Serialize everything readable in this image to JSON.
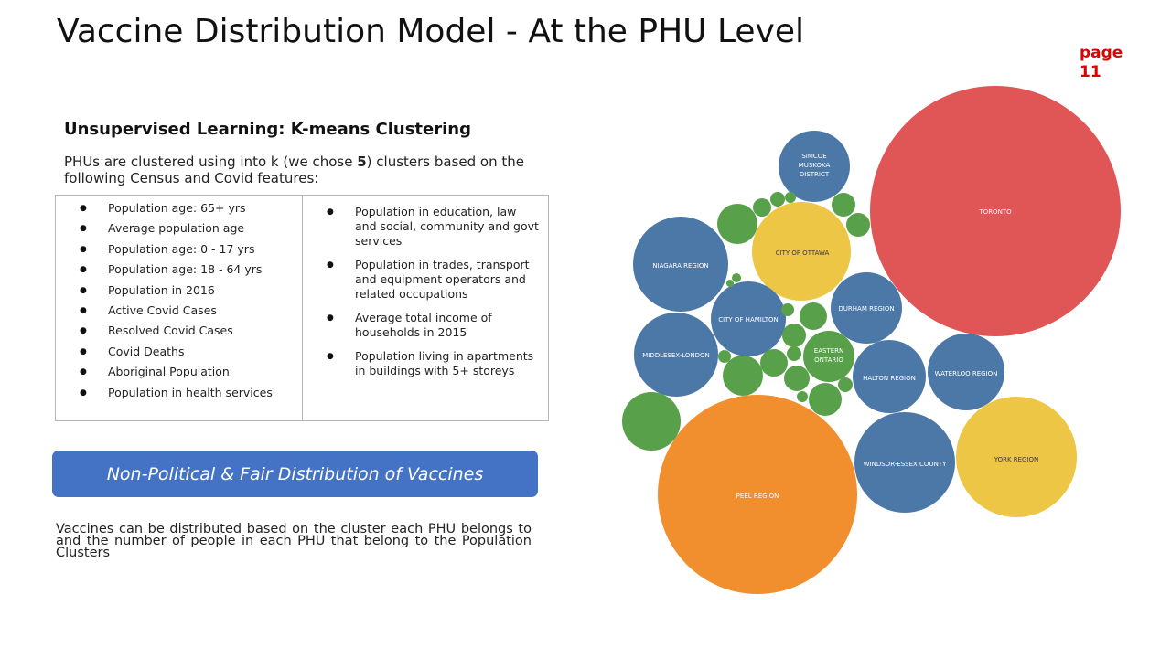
{
  "title": "Vaccine Distribution Model - At the PHU Level",
  "page_label": "page",
  "page_number": "11",
  "subheading": "Unsupervised Learning: K-means Clustering",
  "intro": {
    "before": "PHUs are clustered using into k (we chose ",
    "k": "5",
    "after": ") clusters based on the following Census and Covid features:"
  },
  "features_left": [
    "Population age: 65+ yrs",
    "Average population age",
    "Population age: 0 - 17 yrs",
    "Population age: 18 - 64 yrs",
    "Population in 2016",
    "Active Covid Cases",
    "Resolved Covid Cases",
    "Covid Deaths",
    "Aboriginal Population",
    "Population in health services"
  ],
  "features_right": [
    "Population in education, law and social, community and govt services",
    "Population in trades, transport and equipment operators and related occupations",
    "Average total income of households in 2015",
    "Population living in apartments in buildings with 5+ storeys"
  ],
  "banner": "Non-Political & Fair Distribution of Vaccines",
  "conclusion": "Vaccines can be distributed based on the cluster each PHU belongs to and the number of people in each PHU that belong to the Population Clusters",
  "colors": {
    "red": "#e05657",
    "orange": "#f18e2e",
    "yellow": "#ecc644",
    "blue": "#4c78a8",
    "green": "#58a04a",
    "banner": "#4472c4",
    "page_number": "#e00000"
  },
  "chart_data": {
    "type": "bubble",
    "bubbles": [
      {
        "label": "TORONTO",
        "color": "red"
      },
      {
        "label": "PEEL REGION",
        "color": "orange"
      },
      {
        "label": "YORK REGION",
        "color": "yellow"
      },
      {
        "label": "CITY OF OTTAWA",
        "color": "yellow"
      },
      {
        "label": "NIAGARA REGION",
        "color": "blue"
      },
      {
        "label": "MIDDLESEX-LONDON",
        "color": "blue"
      },
      {
        "label": "CITY OF HAMILTON",
        "color": "blue"
      },
      {
        "label": "DURHAM REGION",
        "color": "blue"
      },
      {
        "label": "HALTON REGION",
        "color": "blue"
      },
      {
        "label": "WATERLOO REGION",
        "color": "blue"
      },
      {
        "label": "WINDSOR-ESSEX COUNTY",
        "color": "blue"
      },
      {
        "label": "SIMCOE MUSKOKA DISTRICT",
        "color": "blue"
      },
      {
        "label": "EASTERN ONTARIO",
        "color": "green"
      },
      {
        "label": "",
        "color": "green"
      },
      {
        "label": "",
        "color": "green"
      },
      {
        "label": "",
        "color": "green"
      },
      {
        "label": "",
        "color": "green"
      },
      {
        "label": "",
        "color": "green"
      },
      {
        "label": "",
        "color": "green"
      },
      {
        "label": "",
        "color": "green"
      },
      {
        "label": "",
        "color": "green"
      },
      {
        "label": "",
        "color": "green"
      },
      {
        "label": "",
        "color": "green"
      },
      {
        "label": "",
        "color": "green"
      },
      {
        "label": "",
        "color": "green"
      },
      {
        "label": "",
        "color": "green"
      },
      {
        "label": "",
        "color": "green"
      },
      {
        "label": "",
        "color": "green"
      },
      {
        "label": "",
        "color": "green"
      },
      {
        "label": "",
        "color": "green"
      },
      {
        "label": "",
        "color": "green"
      },
      {
        "label": "",
        "color": "green"
      },
      {
        "label": "",
        "color": "green"
      }
    ]
  }
}
